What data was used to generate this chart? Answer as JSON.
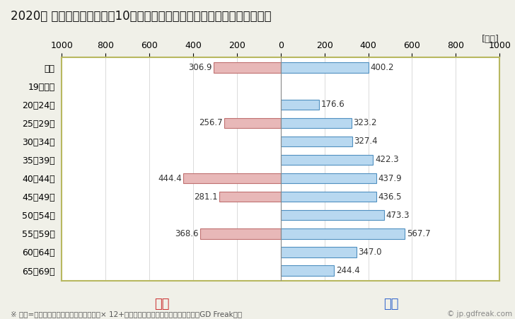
{
  "title": "2020年 民間企業（従業者数10人以上）フルタイム労働者の男女別平均年収",
  "unit_label": "[万円]",
  "footnote": "※ 年収=「きまって支給する現金給与額」× 12+「年間賞与その他特別給与額」としてGD Freak推計",
  "copyright": "© jp.gdfreak.com",
  "female_label": "女性",
  "male_label": "男性",
  "categories": [
    "全体",
    "19歳以下",
    "20～24歳",
    "25～29歳",
    "30～34歳",
    "35～39歳",
    "40～44歳",
    "45～49歳",
    "50～54歳",
    "55～59歳",
    "60～64歳",
    "65～69歳"
  ],
  "female_values": [
    306.9,
    0,
    0,
    256.7,
    0,
    0,
    444.4,
    281.1,
    0,
    368.6,
    0,
    0
  ],
  "male_values": [
    400.2,
    0,
    176.6,
    323.2,
    327.4,
    422.3,
    437.9,
    436.5,
    473.3,
    567.7,
    347.0,
    244.4
  ],
  "female_fill_color": "#e8b8b8",
  "female_edge_color": "#c07070",
  "male_fill_color": "#b8d8f0",
  "male_edge_color": "#5090c0",
  "female_label_color": "#cc3333",
  "male_label_color": "#3366cc",
  "background_color": "#f0f0e8",
  "plot_background_color": "#ffffff",
  "border_color": "#b8b860",
  "xlim": 1000,
  "bar_height": 0.55,
  "title_fontsize": 12,
  "tick_fontsize": 9,
  "value_fontsize": 8.5,
  "legend_fontsize": 13,
  "footnote_fontsize": 7.5
}
